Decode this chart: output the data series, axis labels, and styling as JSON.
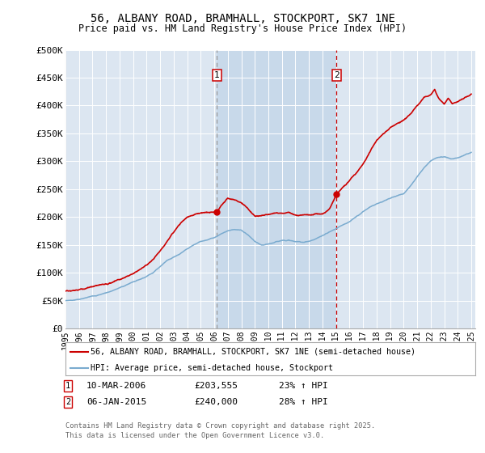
{
  "title_line1": "56, ALBANY ROAD, BRAMHALL, STOCKPORT, SK7 1NE",
  "title_line2": "Price paid vs. HM Land Registry's House Price Index (HPI)",
  "ylabel_ticks": [
    "£0",
    "£50K",
    "£100K",
    "£150K",
    "£200K",
    "£250K",
    "£300K",
    "£350K",
    "£400K",
    "£450K",
    "£500K"
  ],
  "ytick_values": [
    0,
    50000,
    100000,
    150000,
    200000,
    250000,
    300000,
    350000,
    400000,
    450000,
    500000
  ],
  "ylim": [
    0,
    500000
  ],
  "background_color": "#dce6f1",
  "red_line_color": "#cc0000",
  "blue_line_color": "#7aabcf",
  "shade_color": "#c8d9ea",
  "marker1_x": 2006.2,
  "marker2_x": 2015.05,
  "annotation1": [
    "1",
    "10-MAR-2006",
    "£203,555",
    "23% ↑ HPI"
  ],
  "annotation2": [
    "2",
    "06-JAN-2015",
    "£240,000",
    "28% ↑ HPI"
  ],
  "legend_line1": "56, ALBANY ROAD, BRAMHALL, STOCKPORT, SK7 1NE (semi-detached house)",
  "legend_line2": "HPI: Average price, semi-detached house, Stockport",
  "footer": "Contains HM Land Registry data © Crown copyright and database right 2025.\nThis data is licensed under the Open Government Licence v3.0.",
  "hpi_key_years": [
    1995.0,
    1995.5,
    1996.0,
    1996.5,
    1997.0,
    1997.5,
    1998.0,
    1998.5,
    1999.0,
    1999.5,
    2000.0,
    2000.5,
    2001.0,
    2001.5,
    2002.0,
    2002.5,
    2003.0,
    2003.5,
    2004.0,
    2004.5,
    2005.0,
    2005.5,
    2006.0,
    2006.5,
    2007.0,
    2007.5,
    2008.0,
    2008.5,
    2009.0,
    2009.5,
    2010.0,
    2010.5,
    2011.0,
    2011.5,
    2012.0,
    2012.5,
    2013.0,
    2013.5,
    2014.0,
    2014.5,
    2015.0,
    2015.5,
    2016.0,
    2016.5,
    2017.0,
    2017.5,
    2018.0,
    2018.5,
    2019.0,
    2019.5,
    2020.0,
    2020.5,
    2021.0,
    2021.5,
    2022.0,
    2022.5,
    2023.0,
    2023.5,
    2024.0,
    2024.5,
    2025.0
  ],
  "hpi_key_vals": [
    50000,
    51000,
    53000,
    55000,
    58000,
    61000,
    65000,
    69000,
    74000,
    79000,
    85000,
    90000,
    96000,
    104000,
    115000,
    126000,
    133000,
    140000,
    147000,
    154000,
    160000,
    164000,
    168000,
    175000,
    181000,
    184000,
    182000,
    174000,
    162000,
    154000,
    155000,
    158000,
    162000,
    163000,
    160000,
    159000,
    161000,
    165000,
    170000,
    177000,
    183000,
    190000,
    197000,
    205000,
    213000,
    221000,
    228000,
    233000,
    238000,
    242000,
    247000,
    260000,
    278000,
    295000,
    308000,
    315000,
    316000,
    312000,
    315000,
    320000,
    325000
  ],
  "price_key_years": [
    1995.0,
    1995.3,
    1995.6,
    1996.0,
    1996.4,
    1996.8,
    1997.2,
    1997.6,
    1998.0,
    1998.5,
    1999.0,
    1999.5,
    2000.0,
    2000.5,
    2001.0,
    2001.5,
    2002.0,
    2002.5,
    2003.0,
    2003.5,
    2004.0,
    2004.5,
    2005.0,
    2005.5,
    2006.0,
    2006.2,
    2006.5,
    2007.0,
    2007.5,
    2008.0,
    2008.3,
    2008.7,
    2009.0,
    2009.5,
    2010.0,
    2010.5,
    2011.0,
    2011.5,
    2012.0,
    2012.5,
    2013.0,
    2013.5,
    2014.0,
    2014.5,
    2015.0,
    2015.5,
    2016.0,
    2016.5,
    2017.0,
    2017.5,
    2018.0,
    2018.5,
    2019.0,
    2019.5,
    2020.0,
    2020.5,
    2021.0,
    2021.5,
    2022.0,
    2022.3,
    2022.6,
    2023.0,
    2023.3,
    2023.6,
    2024.0,
    2024.5,
    2025.0
  ],
  "price_key_vals": [
    67000,
    68000,
    70000,
    72000,
    73000,
    75000,
    77000,
    79000,
    81000,
    84000,
    88000,
    93000,
    98000,
    105000,
    112000,
    122000,
    135000,
    152000,
    168000,
    182000,
    192000,
    197000,
    200000,
    202000,
    203000,
    203555,
    215000,
    228000,
    225000,
    220000,
    215000,
    205000,
    198000,
    200000,
    202000,
    204000,
    205000,
    206000,
    203000,
    202000,
    204000,
    206000,
    208000,
    215000,
    240000,
    255000,
    268000,
    282000,
    298000,
    318000,
    338000,
    350000,
    360000,
    368000,
    375000,
    385000,
    400000,
    415000,
    420000,
    430000,
    415000,
    405000,
    415000,
    405000,
    410000,
    415000,
    420000
  ]
}
